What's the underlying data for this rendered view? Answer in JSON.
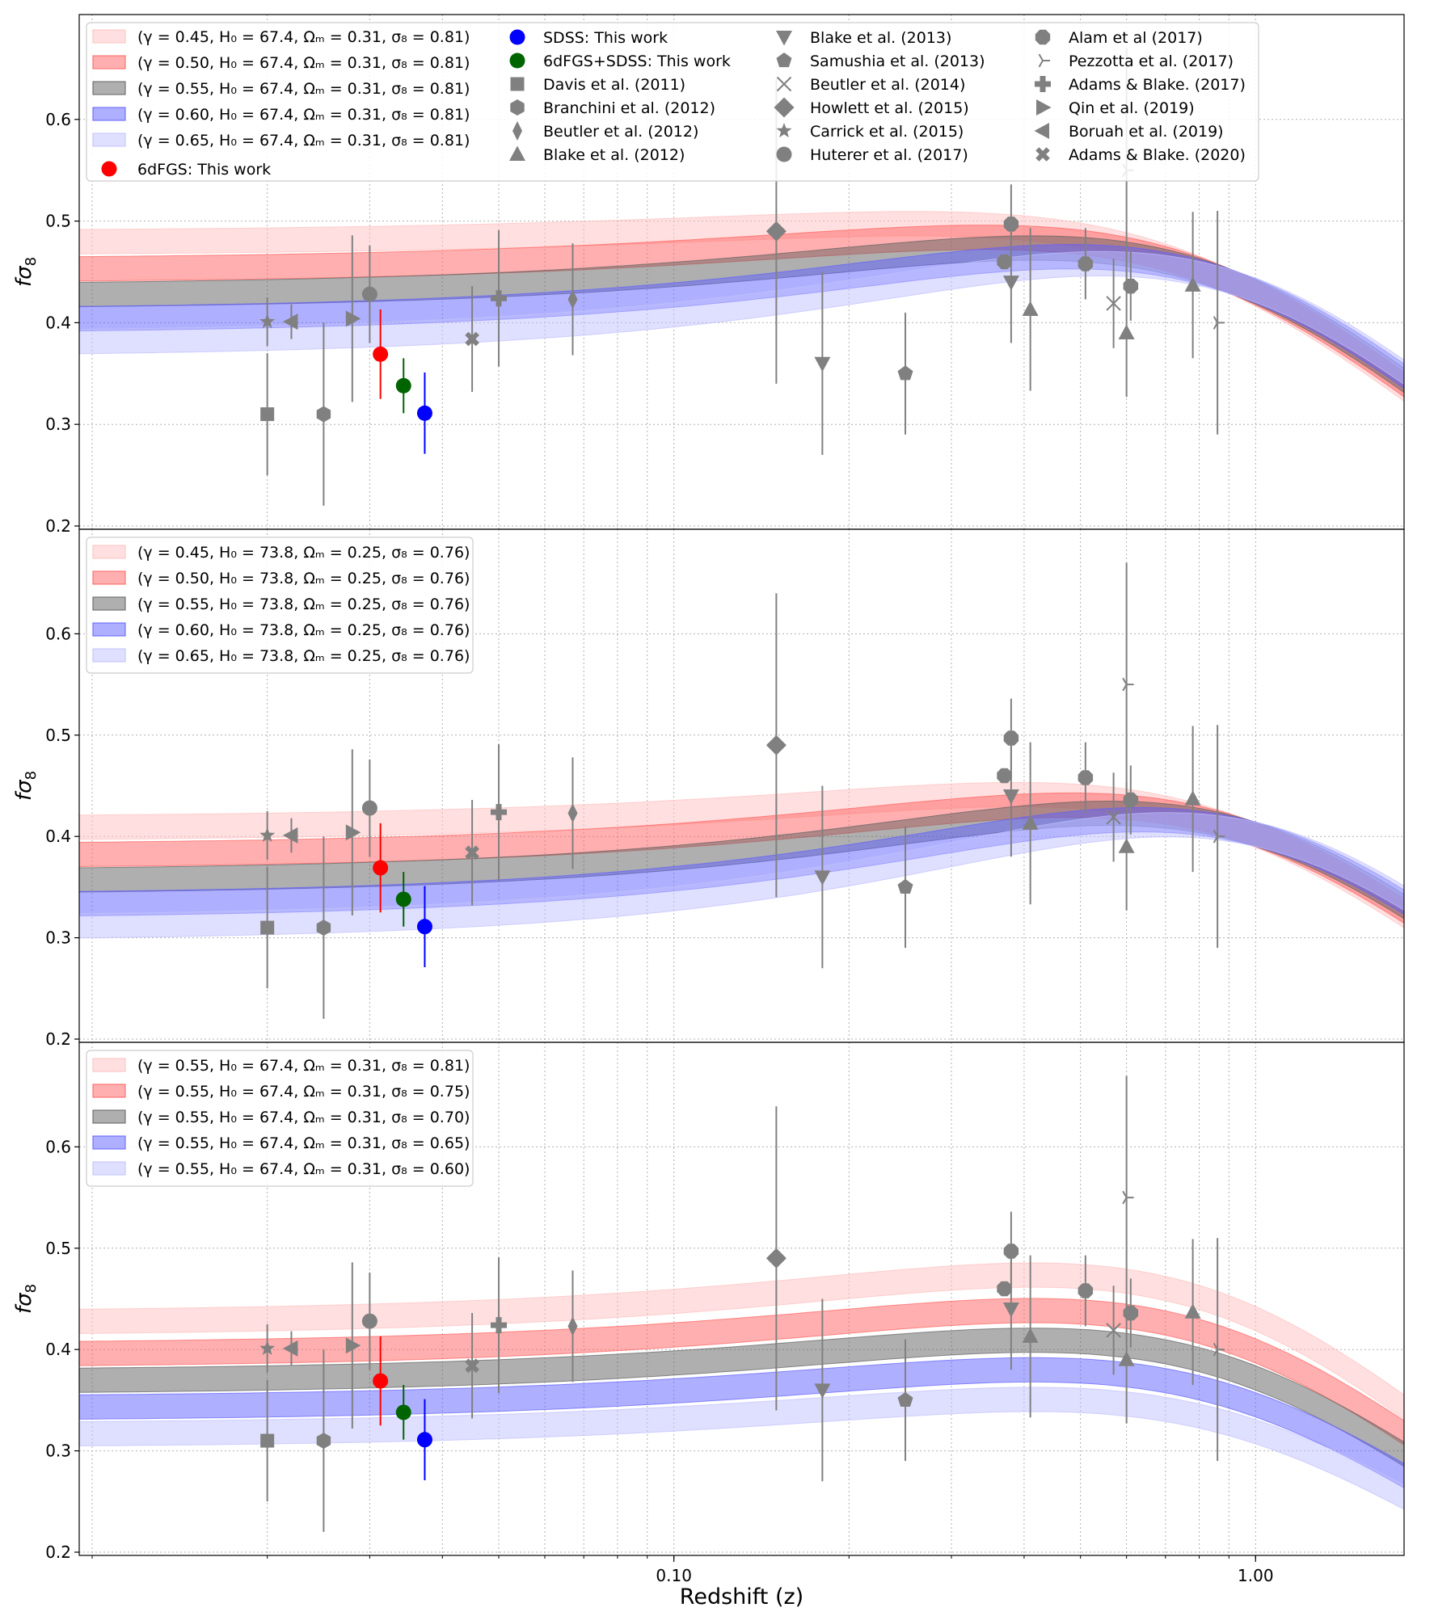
{
  "chart_data": {
    "type": "scatter",
    "xlabel": "Redshift (z)",
    "ylabel": "fσ8",
    "xscale": "log",
    "xlim": [
      0.0095,
      1.8
    ],
    "ylim": [
      0.2,
      0.7
    ],
    "x_ticks": [
      {
        "v": 0.1,
        "label": "0.10"
      },
      {
        "v": 1.0,
        "label": "1.00"
      }
    ],
    "y_ticks": [
      {
        "v": 0.2,
        "label": "0.2"
      },
      {
        "v": 0.3,
        "label": "0.3"
      },
      {
        "v": 0.4,
        "label": "0.4"
      },
      {
        "v": 0.5,
        "label": "0.5"
      },
      {
        "v": 0.6,
        "label": "0.6"
      }
    ],
    "points": [
      {
        "name": "6dFGS: This work",
        "z": 0.0313,
        "fs8": 0.369,
        "err": 0.044,
        "color": "#ff0000",
        "marker": "circle"
      },
      {
        "name": "6dFGS+SDSS: This work",
        "z": 0.0343,
        "fs8": 0.338,
        "err": 0.027,
        "color": "#006400",
        "marker": "circle"
      },
      {
        "name": "SDSS: This work",
        "z": 0.0373,
        "fs8": 0.311,
        "err": 0.04,
        "color": "#0000ff",
        "marker": "circle"
      },
      {
        "name": "Davis et al. (2011)",
        "z": 0.02,
        "fs8": 0.31,
        "err": 0.06,
        "color": "#808080",
        "marker": "square"
      },
      {
        "name": "Branchini et al. (2012)",
        "z": 0.025,
        "fs8": 0.31,
        "err": 0.09,
        "color": "#808080",
        "marker": "hexagon"
      },
      {
        "name": "Beutler et al. (2012)",
        "z": 0.067,
        "fs8": 0.423,
        "err": 0.055,
        "color": "#808080",
        "marker": "thin_diamond"
      },
      {
        "name": "Blake et al. (2012)",
        "z": 0.41,
        "fs8": 0.413,
        "err": 0.08,
        "color": "#808080",
        "marker": "triangle_up"
      },
      {
        "name": "Blake et al. (2012)",
        "z": 0.6,
        "fs8": 0.39,
        "err": 0.063,
        "color": "#808080",
        "marker": "triangle_up"
      },
      {
        "name": "Blake et al. (2012)",
        "z": 0.78,
        "fs8": 0.437,
        "err": 0.072,
        "color": "#808080",
        "marker": "triangle_up"
      },
      {
        "name": "Blake et al. (2013)",
        "z": 0.18,
        "fs8": 0.36,
        "err": 0.09,
        "color": "#808080",
        "marker": "triangle_down"
      },
      {
        "name": "Blake et al. (2013)",
        "z": 0.38,
        "fs8": 0.44,
        "err": 0.06,
        "color": "#808080",
        "marker": "triangle_down"
      },
      {
        "name": "Samushia et al. (2013)",
        "z": 0.25,
        "fs8": 0.35,
        "err": 0.06,
        "color": "#808080",
        "marker": "pentagon"
      },
      {
        "name": "Beutler et al. (2014)",
        "z": 0.57,
        "fs8": 0.419,
        "err": 0.044,
        "color": "#808080",
        "marker": "x"
      },
      {
        "name": "Howlett et al. (2015)",
        "z": 0.15,
        "fs8": 0.49,
        "err": 0.15,
        "color": "#808080",
        "marker": "diamond"
      },
      {
        "name": "Carrick et al. (2015)",
        "z": 0.02,
        "fs8": 0.401,
        "err": 0.024,
        "color": "#808080",
        "marker": "star"
      },
      {
        "name": "Huterer et al. (2017)",
        "z": 0.03,
        "fs8": 0.428,
        "err": 0.048,
        "color": "#808080",
        "marker": "circle"
      },
      {
        "name": "Alam et al (2017)",
        "z": 0.38,
        "fs8": 0.497,
        "err": 0.039,
        "color": "#808080",
        "marker": "octagon"
      },
      {
        "name": "Alam et al (2017)",
        "z": 0.51,
        "fs8": 0.458,
        "err": 0.035,
        "color": "#808080",
        "marker": "octagon"
      },
      {
        "name": "Alam et al (2017)",
        "z": 0.61,
        "fs8": 0.436,
        "err": 0.034,
        "color": "#808080",
        "marker": "octagon"
      },
      {
        "name": "Alam et al (2017)",
        "z": 0.37,
        "fs8": 0.46,
        "err": 0.0,
        "color": "#808080",
        "marker": "octagon"
      },
      {
        "name": "Pezzotta et al. (2017)",
        "z": 0.6,
        "fs8": 0.55,
        "err": 0.12,
        "color": "#808080",
        "marker": "tri"
      },
      {
        "name": "Pezzotta et al. (2017)",
        "z": 0.86,
        "fs8": 0.4,
        "err": 0.11,
        "color": "#808080",
        "marker": "tri"
      },
      {
        "name": "Adams & Blake. (2017)",
        "z": 0.05,
        "fs8": 0.424,
        "err": 0.067,
        "color": "#808080",
        "marker": "plus"
      },
      {
        "name": "Qin et al. (2019)",
        "z": 0.028,
        "fs8": 0.404,
        "err": 0.082,
        "color": "#808080",
        "marker": "triangle_right"
      },
      {
        "name": "Boruah et al. (2019)",
        "z": 0.022,
        "fs8": 0.401,
        "err": 0.017,
        "color": "#808080",
        "marker": "triangle_left"
      },
      {
        "name": "Adams & Blake. (2020)",
        "z": 0.045,
        "fs8": 0.384,
        "err": 0.052,
        "color": "#808080",
        "marker": "xfilled"
      }
    ],
    "panels": [
      {
        "id": "top",
        "H0": 67.4,
        "Om": 0.31,
        "bands": [
          {
            "label": "(γ = 0.45, H₀ = 67.4, Ωₘ = 0.31, σ₈ = 0.81)",
            "gamma": 0.45,
            "s8": 0.81,
            "color": "#ffc0c0",
            "opacity": 0.5
          },
          {
            "label": "(γ = 0.50, H₀ = 67.4, Ωₘ = 0.31, σ₈ = 0.81)",
            "gamma": 0.5,
            "s8": 0.81,
            "color": "#ff6060",
            "opacity": 0.5
          },
          {
            "label": "(γ = 0.55, H₀ = 67.4, Ωₘ = 0.31, σ₈ = 0.81)",
            "gamma": 0.55,
            "s8": 0.81,
            "color": "#606060",
            "opacity": 0.5
          },
          {
            "label": "(γ = 0.60, H₀ = 67.4, Ωₘ = 0.31, σ₈ = 0.81)",
            "gamma": 0.6,
            "s8": 0.81,
            "color": "#6060ff",
            "opacity": 0.5
          },
          {
            "label": "(γ = 0.65, H₀ = 67.4, Ωₘ = 0.31, σ₈ = 0.81)",
            "gamma": 0.65,
            "s8": 0.81,
            "color": "#c0c0ff",
            "opacity": 0.5
          }
        ]
      },
      {
        "id": "middle",
        "H0": 73.8,
        "Om": 0.25,
        "bands": [
          {
            "label": "(γ = 0.45, H₀ = 73.8, Ωₘ = 0.25, σ₈ = 0.76)",
            "gamma": 0.45,
            "s8": 0.76,
            "color": "#ffc0c0",
            "opacity": 0.5
          },
          {
            "label": "(γ = 0.50, H₀ = 73.8, Ωₘ = 0.25, σ₈ = 0.76)",
            "gamma": 0.5,
            "s8": 0.76,
            "color": "#ff6060",
            "opacity": 0.5
          },
          {
            "label": "(γ = 0.55, H₀ = 73.8, Ωₘ = 0.25, σ₈ = 0.76)",
            "gamma": 0.55,
            "s8": 0.76,
            "color": "#606060",
            "opacity": 0.5
          },
          {
            "label": "(γ = 0.60, H₀ = 73.8, Ωₘ = 0.25, σ₈ = 0.76)",
            "gamma": 0.6,
            "s8": 0.76,
            "color": "#6060ff",
            "opacity": 0.5
          },
          {
            "label": "(γ = 0.65, H₀ = 73.8, Ωₘ = 0.25, σ₈ = 0.76)",
            "gamma": 0.65,
            "s8": 0.76,
            "color": "#c0c0ff",
            "opacity": 0.5
          }
        ]
      },
      {
        "id": "bottom",
        "H0": 67.4,
        "Om": 0.31,
        "bands": [
          {
            "label": "(γ = 0.55, H₀ = 67.4, Ωₘ = 0.31, σ₈ = 0.81)",
            "gamma": 0.55,
            "s8": 0.81,
            "color": "#ffc0c0",
            "opacity": 0.5
          },
          {
            "label": "(γ = 0.55, H₀ = 67.4, Ωₘ = 0.31, σ₈ = 0.75)",
            "gamma": 0.55,
            "s8": 0.75,
            "color": "#ff6060",
            "opacity": 0.5
          },
          {
            "label": "(γ = 0.55, H₀ = 67.4, Ωₘ = 0.31, σ₈ = 0.70)",
            "gamma": 0.55,
            "s8": 0.7,
            "color": "#606060",
            "opacity": 0.5
          },
          {
            "label": "(γ = 0.55, H₀ = 67.4, Ωₘ = 0.31, σ₈ = 0.65)",
            "gamma": 0.55,
            "s8": 0.65,
            "color": "#6060ff",
            "opacity": 0.5
          },
          {
            "label": "(γ = 0.55, H₀ = 67.4, Ωₘ = 0.31, σ₈ = 0.60)",
            "gamma": 0.55,
            "s8": 0.6,
            "color": "#c0c0ff",
            "opacity": 0.5
          }
        ]
      }
    ],
    "top_legend_survey_columns": [
      [
        "SDSS: This work",
        "6dFGS+SDSS: This work",
        "Davis et al. (2011)",
        "Branchini et al. (2012)",
        "Beutler et al. (2012)",
        "Blake et al. (2012)"
      ],
      [
        "Blake et al. (2013)",
        "Samushia et al. (2013)",
        "Beutler et al. (2014)",
        "Howlett et al. (2015)",
        "Carrick et al. (2015)",
        "Huterer et al. (2017)"
      ],
      [
        "Alam et al (2017)",
        "Pezzotta et al. (2017)",
        "Adams & Blake. (2017)",
        "Qin et al. (2019)",
        "Boruah et al. (2019)",
        "Adams & Blake. (2020)"
      ]
    ],
    "top_legend_extra": "6dFGS: This work",
    "survey_markers": {
      "SDSS: This work": {
        "marker": "circle",
        "color": "#0000ff"
      },
      "6dFGS+SDSS: This work": {
        "marker": "circle",
        "color": "#006400"
      },
      "6dFGS: This work": {
        "marker": "circle",
        "color": "#ff0000"
      },
      "Davis et al. (2011)": {
        "marker": "square",
        "color": "#808080"
      },
      "Branchini et al. (2012)": {
        "marker": "hexagon",
        "color": "#808080"
      },
      "Beutler et al. (2012)": {
        "marker": "thin_diamond",
        "color": "#808080"
      },
      "Blake et al. (2012)": {
        "marker": "triangle_up",
        "color": "#808080"
      },
      "Blake et al. (2013)": {
        "marker": "triangle_down",
        "color": "#808080"
      },
      "Samushia et al. (2013)": {
        "marker": "pentagon",
        "color": "#808080"
      },
      "Beutler et al. (2014)": {
        "marker": "x",
        "color": "#808080"
      },
      "Howlett et al. (2015)": {
        "marker": "diamond",
        "color": "#808080"
      },
      "Carrick et al. (2015)": {
        "marker": "star",
        "color": "#808080"
      },
      "Huterer et al. (2017)": {
        "marker": "circle",
        "color": "#808080"
      },
      "Alam et al (2017)": {
        "marker": "octagon",
        "color": "#808080"
      },
      "Pezzotta et al. (2017)": {
        "marker": "tri",
        "color": "#808080"
      },
      "Adams & Blake. (2017)": {
        "marker": "plus",
        "color": "#808080"
      },
      "Qin et al. (2019)": {
        "marker": "triangle_right",
        "color": "#808080"
      },
      "Boruah et al. (2019)": {
        "marker": "triangle_left",
        "color": "#808080"
      },
      "Adams & Blake. (2020)": {
        "marker": "xfilled",
        "color": "#808080"
      }
    }
  }
}
